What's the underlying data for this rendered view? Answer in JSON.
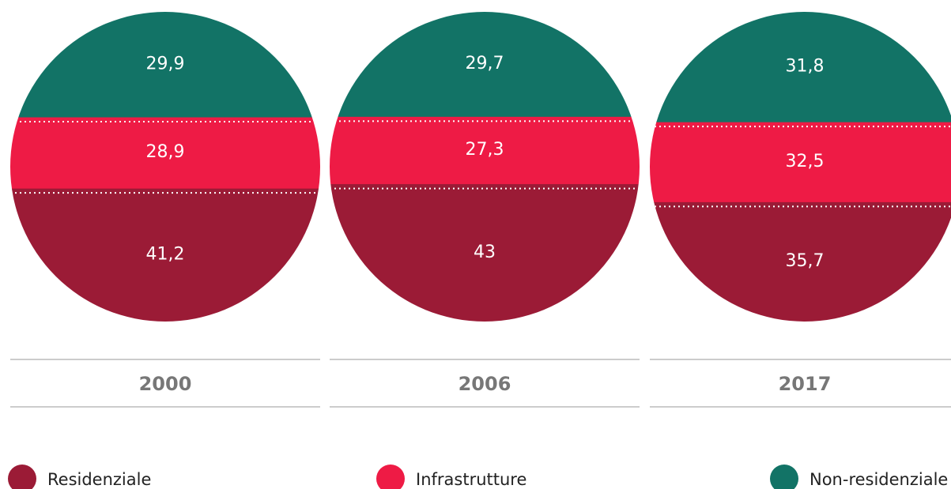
{
  "chart_data": {
    "type": "stacked-circle",
    "categories": [
      "2000",
      "2006",
      "2017"
    ],
    "series": [
      {
        "name": "Residenziale",
        "color": "#9b1b36",
        "values": [
          41.2,
          43,
          35.7
        ],
        "value_labels": [
          "41,2",
          "43",
          "35,7"
        ]
      },
      {
        "name": "Infrastrutture",
        "color": "#ee1b45",
        "values": [
          28.9,
          27.3,
          32.5
        ],
        "value_labels": [
          "28,9",
          "27,3",
          "32,5"
        ]
      },
      {
        "name": "Non-residenziale",
        "color": "#127366",
        "values": [
          29.9,
          29.7,
          31.8
        ],
        "value_labels": [
          "29,9",
          "29,7",
          "31,8"
        ]
      }
    ]
  }
}
